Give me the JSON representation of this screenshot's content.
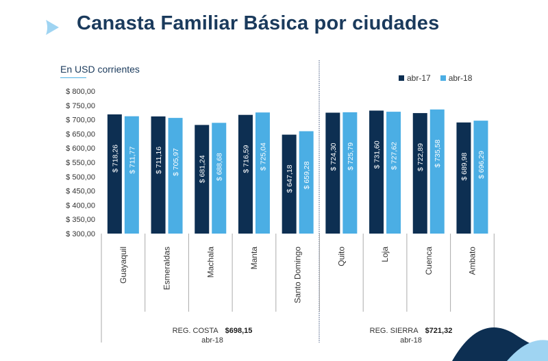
{
  "title": "Canasta Familiar Básica por ciudades",
  "unit_label": "En USD corrientes",
  "legend": [
    {
      "name": "abr-17",
      "color": "#0d2f52"
    },
    {
      "name": "abr-18",
      "color": "#4baee4"
    }
  ],
  "regions": [
    {
      "name": "REG. COSTA",
      "avg": "$698,15",
      "period": "abr-18"
    },
    {
      "name": "REG. SIERRA",
      "avg": "$721,32",
      "period": "abr-18"
    }
  ],
  "chart_data": {
    "type": "bar",
    "categories": [
      "Guayaquil",
      "Esmeraldas",
      "Machala",
      "Manta",
      "Santo Domingo",
      "Quito",
      "Loja",
      "Cuenca",
      "Ambato"
    ],
    "series": [
      {
        "name": "abr-17",
        "values": [
          718.26,
          711.16,
          681.24,
          716.59,
          647.18,
          724.3,
          731.6,
          722.89,
          689.98
        ],
        "labels": [
          "$ 718,26",
          "$ 711,16",
          "$ 681,24",
          "$ 716,59",
          "$ 647,18",
          "$ 724,30",
          "$ 731,60",
          "$ 722,89",
          "$ 689,98"
        ]
      },
      {
        "name": "abr-18",
        "values": [
          711.77,
          705.97,
          688.68,
          725.04,
          659.28,
          725.79,
          727.62,
          735.58,
          696.29
        ],
        "labels": [
          "$ 711,77",
          "$ 705,97",
          "$ 688,68",
          "$ 725,04",
          "$ 659,28",
          "$ 725,79",
          "$ 727,62",
          "$ 735,58",
          "$ 696,29"
        ]
      }
    ],
    "ylim": [
      300,
      800
    ],
    "yticks": [
      "$ 300,00",
      "$ 350,00",
      "$ 400,00",
      "$ 450,00",
      "$ 500,00",
      "$ 550,00",
      "$ 600,00",
      "$ 650,00",
      "$ 700,00",
      "$ 750,00",
      "$ 800,00"
    ],
    "grid": false,
    "legend_position": "top-right"
  }
}
